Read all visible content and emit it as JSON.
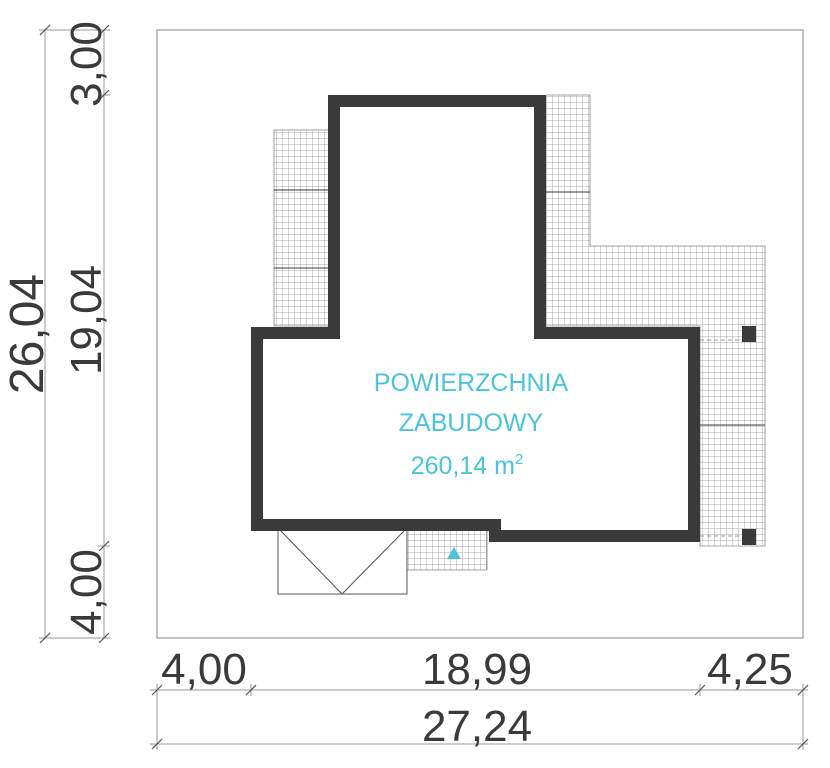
{
  "area_label": {
    "line1": "POWIERZCHNIA",
    "line2": "ZABUDOWY",
    "value": "260,14 m",
    "unit_superscript": "2"
  },
  "dimensions": {
    "left_outer": "26,04",
    "left_top": "3,00",
    "left_middle": "19,04",
    "left_bottom": "4,00",
    "bottom_left": "4,00",
    "bottom_middle": "18,99",
    "bottom_right": "4,25",
    "bottom_total": "27,24"
  },
  "colors": {
    "label": "#4bc3dc",
    "walls": "#3a3a3a",
    "lines": "#9a9a9a",
    "grid": "#8a8a8a",
    "entrance_marker": "#4bc3dc"
  }
}
